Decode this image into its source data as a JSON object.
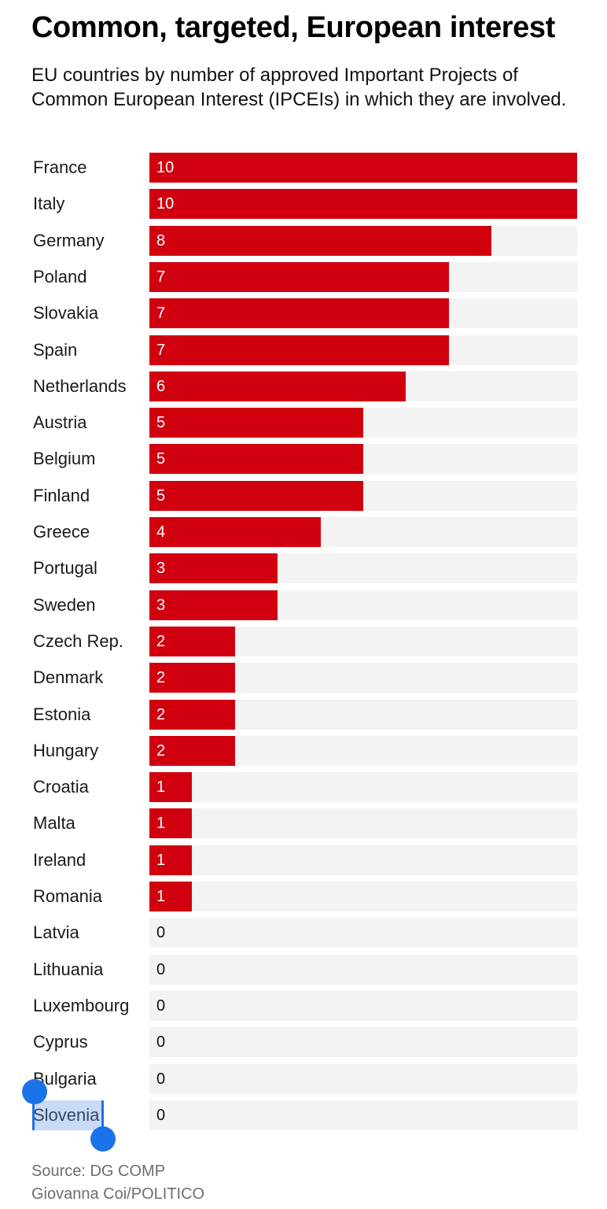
{
  "chart_data": {
    "type": "bar",
    "orientation": "horizontal",
    "title": "Common, targeted, European interest",
    "subtitle": "EU countries by number of approved Important Projects of Common European Interest (IPCEIs) in which they are involved.",
    "categories": [
      "France",
      "Italy",
      "Germany",
      "Poland",
      "Slovakia",
      "Spain",
      "Netherlands",
      "Austria",
      "Belgium",
      "Finland",
      "Greece",
      "Portugal",
      "Sweden",
      "Czech Rep.",
      "Denmark",
      "Estonia",
      "Hungary",
      "Croatia",
      "Malta",
      "Ireland",
      "Romania",
      "Latvia",
      "Lithuania",
      "Luxembourg",
      "Cyprus",
      "Bulgaria",
      "Slovenia"
    ],
    "values": [
      10,
      10,
      8,
      7,
      7,
      7,
      6,
      5,
      5,
      5,
      4,
      3,
      3,
      2,
      2,
      2,
      2,
      1,
      1,
      1,
      1,
      0,
      0,
      0,
      0,
      0,
      0
    ],
    "xlim": [
      0,
      10
    ],
    "grid": false,
    "legend": "none",
    "bar_color": "#d0000f",
    "track_color": "#f3f3f3"
  },
  "source": {
    "line1": "Source: DG COMP",
    "line2": "Giovanna Coi/POLITICO"
  },
  "selection": {
    "selected_text": "Slovenia",
    "handle_color": "#1a73e8"
  }
}
